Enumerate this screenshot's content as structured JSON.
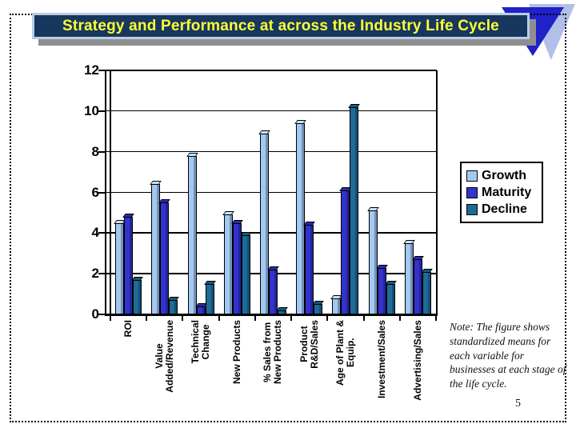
{
  "title": "Strategy and Performance at across the Industry Life Cycle",
  "page_number": "5",
  "note": "Note: The figure shows standardized means for each variable for businesses at each stage of the life cycle.",
  "colors": {
    "title_bg": "#17375E",
    "title_text": "#FFFF33",
    "title_frame": "#B9CDE5",
    "title_shadow": "#8F8F8F",
    "logo_front": "#2121C8",
    "logo_back": "#B0C0E8",
    "axis": "#000000"
  },
  "chart_data": {
    "type": "bar",
    "title": "",
    "xlabel": "",
    "ylabel": "",
    "ylim": [
      0,
      12
    ],
    "yticks": [
      0,
      2,
      4,
      6,
      8,
      10,
      12
    ],
    "grid": true,
    "legend_position": "right",
    "categories": [
      "ROI",
      "Value\nAdded/Revenue",
      "Technical\nChange",
      "New Products",
      "% Sales from\nNew Products",
      "Product\nR&D/Sales",
      "Age of Plant &\nEquip.",
      "Investment/Sales",
      "Advertising/Sales"
    ],
    "series": [
      {
        "name": "Growth",
        "color": "#A3C9F0",
        "cap_color": "#C9E2F8",
        "values": [
          4.5,
          6.4,
          7.8,
          4.9,
          8.9,
          9.4,
          0.8,
          5.1,
          3.5
        ]
      },
      {
        "name": "Maturity",
        "color": "#3333CC",
        "cap_color": "#2A2AAE",
        "values": [
          4.8,
          5.5,
          0.4,
          4.5,
          2.2,
          4.4,
          6.1,
          2.3,
          2.7
        ]
      },
      {
        "name": "Decline",
        "color": "#1E6C96",
        "cap_color": "#175877",
        "values": [
          1.7,
          0.7,
          1.5,
          3.9,
          0.2,
          0.5,
          10.2,
          1.5,
          2.1
        ]
      }
    ]
  }
}
